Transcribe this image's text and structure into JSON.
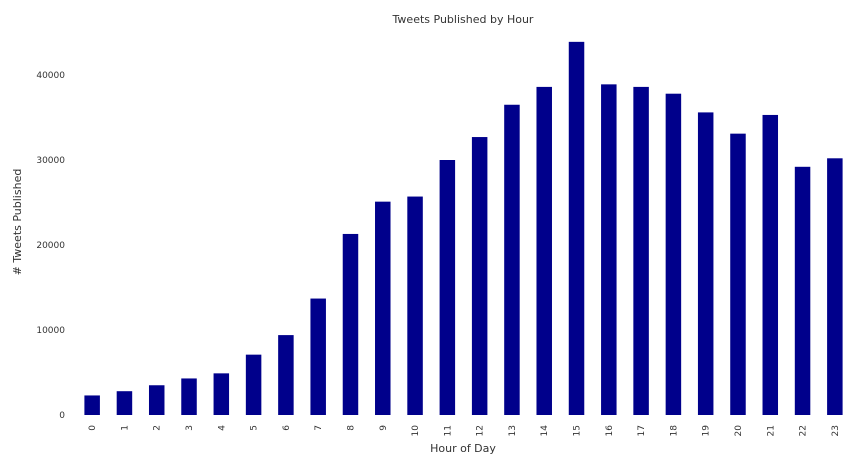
{
  "chart_data": {
    "type": "bar",
    "title": "Tweets Published by Hour",
    "xlabel": "Hour of Day",
    "ylabel": "# Tweets Published",
    "categories": [
      "0",
      "1",
      "2",
      "3",
      "4",
      "5",
      "6",
      "7",
      "8",
      "9",
      "10",
      "11",
      "12",
      "13",
      "14",
      "15",
      "16",
      "17",
      "18",
      "19",
      "20",
      "21",
      "22",
      "23"
    ],
    "values": [
      2300,
      2800,
      3500,
      4300,
      4900,
      7100,
      9400,
      13700,
      21300,
      25100,
      25700,
      30000,
      32700,
      36500,
      38600,
      43900,
      38900,
      38600,
      37800,
      35600,
      33100,
      35300,
      29200,
      30200
    ],
    "yticks": [
      0,
      10000,
      20000,
      30000,
      40000
    ],
    "ylim": [
      0,
      44000
    ],
    "bar_color": "#00008b",
    "grid": false,
    "legend": "none"
  }
}
